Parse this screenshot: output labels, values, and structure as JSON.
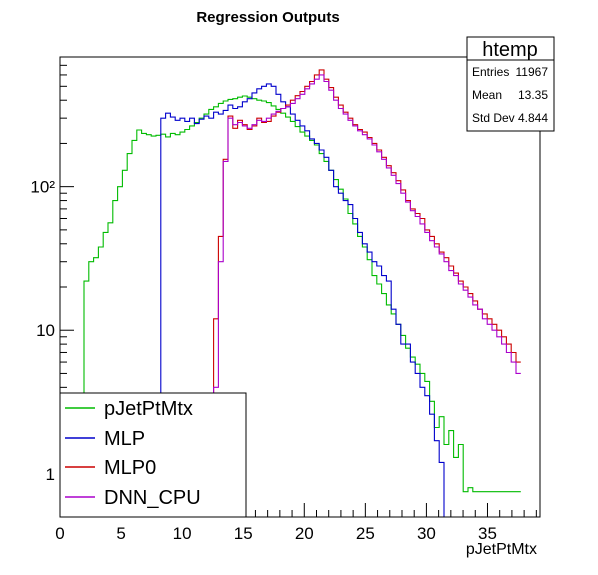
{
  "chart_data": {
    "type": "histogram",
    "title": "Regression Outputs",
    "xlabel": "pJetPtMtx",
    "ylabel": "",
    "log_y": true,
    "xlim": [
      0,
      39.3
    ],
    "ylim": [
      0.5,
      800
    ],
    "grid": false,
    "x_ticks": [
      {
        "value": 0,
        "label": "0"
      },
      {
        "value": 5,
        "label": "5"
      },
      {
        "value": 10,
        "label": "10"
      },
      {
        "value": 15,
        "label": "15"
      },
      {
        "value": 20,
        "label": "20"
      },
      {
        "value": 25,
        "label": "25"
      },
      {
        "value": 30,
        "label": "30"
      },
      {
        "value": 35,
        "label": "35"
      }
    ],
    "y_ticks": [
      {
        "value": 1,
        "label": "1"
      },
      {
        "value": 10,
        "label": "10"
      },
      {
        "value": 100,
        "label": "10²"
      }
    ],
    "bin_start": 0,
    "bin_width": 0.393,
    "legend_position": "bottom-left",
    "stats_box": {
      "name": "htemp",
      "rows": [
        {
          "label": "Entries",
          "value": "11967"
        },
        {
          "label": "Mean",
          "value": "13.35"
        },
        {
          "label": "Std Dev",
          "value": "4.844"
        }
      ]
    },
    "series": [
      {
        "name": "pJetPtMtx",
        "color": "#00bb00",
        "values": [
          0,
          0,
          0,
          0,
          2.7,
          22,
          30,
          32,
          38,
          48,
          56,
          80,
          100,
          130,
          170,
          210,
          248,
          235,
          230,
          225,
          228,
          232,
          222,
          235,
          230,
          240,
          250,
          265,
          280,
          300,
          320,
          345,
          360,
          380,
          395,
          405,
          410,
          420,
          428,
          420,
          410,
          400,
          395,
          385,
          365,
          345,
          325,
          305,
          285,
          262,
          240,
          225,
          210,
          195,
          170,
          150,
          130,
          112,
          96,
          82,
          65,
          55,
          45,
          38,
          31,
          24,
          21,
          18,
          15,
          13,
          11,
          9.2,
          7.5,
          6.5,
          5.8,
          5,
          4.4,
          3.2,
          2.1,
          2.5,
          1.6,
          2,
          1.3,
          1.6,
          0.75,
          0.8,
          0.75,
          0.75,
          0.75,
          0.75,
          0.75,
          0.75,
          0.75,
          0.75,
          0.75,
          0.75
        ]
      },
      {
        "name": "MLP",
        "color": "#0000cc",
        "values": [
          0,
          0,
          0,
          0,
          0,
          0,
          0,
          0,
          0,
          0,
          0,
          0,
          0,
          0,
          0,
          0,
          0,
          0,
          0,
          0,
          0,
          300,
          325,
          305,
          290,
          300,
          285,
          300,
          275,
          295,
          310,
          300,
          330,
          320,
          340,
          370,
          350,
          360,
          390,
          410,
          450,
          480,
          500,
          520,
          500,
          440,
          390,
          360,
          320,
          290,
          265,
          245,
          215,
          200,
          180,
          160,
          130,
          100,
          90,
          80,
          75,
          60,
          48,
          40,
          35,
          30,
          28,
          24,
          22,
          14,
          11,
          8,
          8,
          6,
          5,
          4,
          3.5,
          2.6,
          1.7,
          1.2,
          0,
          0,
          0,
          0,
          0,
          0,
          0,
          0,
          0,
          0,
          0,
          0,
          0,
          0,
          0,
          0
        ]
      },
      {
        "name": "MLP0",
        "color": "#cc0000",
        "values": [
          0,
          0,
          0,
          0,
          0,
          0,
          0,
          0,
          0,
          0,
          0,
          0,
          0,
          0,
          0,
          0,
          0,
          0,
          0,
          0,
          0,
          0,
          0,
          0,
          0,
          0,
          0,
          0,
          0,
          0,
          0,
          0,
          12,
          45,
          155,
          310,
          255,
          290,
          270,
          250,
          265,
          300,
          280,
          285,
          310,
          330,
          350,
          370,
          400,
          430,
          460,
          500,
          540,
          600,
          650,
          560,
          490,
          420,
          370,
          330,
          300,
          270,
          250,
          240,
          220,
          200,
          180,
          160,
          140,
          125,
          110,
          95,
          80,
          70,
          65,
          60,
          50,
          45,
          40,
          35,
          32,
          28,
          25,
          22,
          20,
          18,
          16,
          14,
          13,
          12,
          11,
          10,
          9,
          8,
          7,
          6
        ]
      },
      {
        "name": "DNN_CPU",
        "color": "#aa00cc",
        "values": [
          0,
          0,
          0,
          0,
          0,
          0,
          0,
          0,
          0,
          0,
          0,
          0,
          0,
          0,
          0,
          0,
          0,
          0,
          0,
          0,
          0,
          0,
          0,
          0,
          0,
          0,
          0,
          0,
          0,
          0,
          0,
          0,
          4,
          30,
          150,
          300,
          270,
          280,
          265,
          255,
          270,
          290,
          285,
          300,
          320,
          335,
          350,
          360,
          380,
          410,
          440,
          480,
          520,
          560,
          600,
          540,
          470,
          400,
          350,
          320,
          290,
          265,
          245,
          230,
          215,
          195,
          175,
          155,
          135,
          120,
          105,
          90,
          78,
          68,
          62,
          55,
          48,
          42,
          38,
          34,
          30,
          26,
          24,
          21,
          19,
          17,
          15,
          14,
          12,
          11,
          10,
          9,
          8,
          7,
          6,
          5
        ]
      }
    ]
  }
}
